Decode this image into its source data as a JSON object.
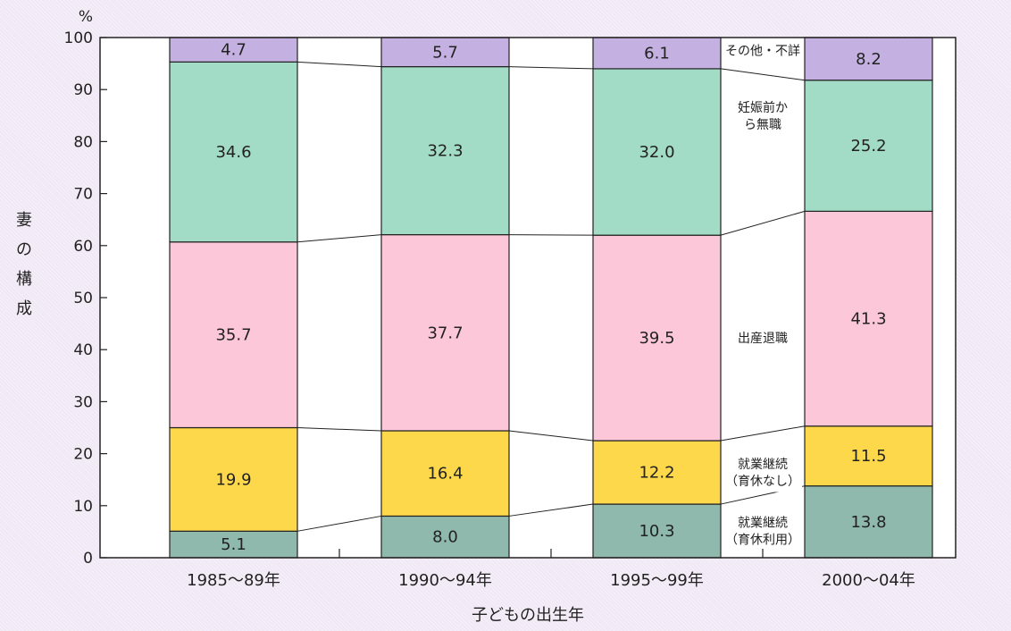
{
  "chart_data": {
    "type": "bar",
    "stacked": true,
    "y_unit": "%",
    "ylabel": "妻の構成",
    "xlabel": "子どもの出生年",
    "ylim": [
      0,
      100
    ],
    "y_ticks": [
      0,
      10,
      20,
      30,
      40,
      50,
      60,
      70,
      80,
      90,
      100
    ],
    "categories": [
      "1985〜89年",
      "1990〜94年",
      "1995〜99年",
      "2000〜04年"
    ],
    "series": [
      {
        "name": "就業継続(育休利用)",
        "label_lines": [
          "就業継続",
          "（育休利用）"
        ],
        "color": "#8fb9ad",
        "values": [
          5.1,
          8.0,
          10.3,
          13.8
        ]
      },
      {
        "name": "就業継続(育休なし)",
        "label_lines": [
          "就業継続",
          "（育休なし）"
        ],
        "color": "#fdd84b",
        "values": [
          19.9,
          16.4,
          12.2,
          11.5
        ]
      },
      {
        "name": "出産退職",
        "label_lines": [
          "出産退職"
        ],
        "color": "#fcc7d9",
        "values": [
          35.7,
          37.7,
          39.5,
          41.3
        ]
      },
      {
        "name": "妊娠前から無職",
        "label_lines": [
          "妊娠前か",
          "ら無職"
        ],
        "color": "#a3dcc6",
        "values": [
          34.6,
          32.3,
          32.0,
          25.2
        ]
      },
      {
        "name": "その他・不詳",
        "label_lines": [
          "その他・不詳"
        ],
        "color": "#c4b1e2",
        "values": [
          4.7,
          5.7,
          6.1,
          8.2
        ]
      }
    ]
  }
}
